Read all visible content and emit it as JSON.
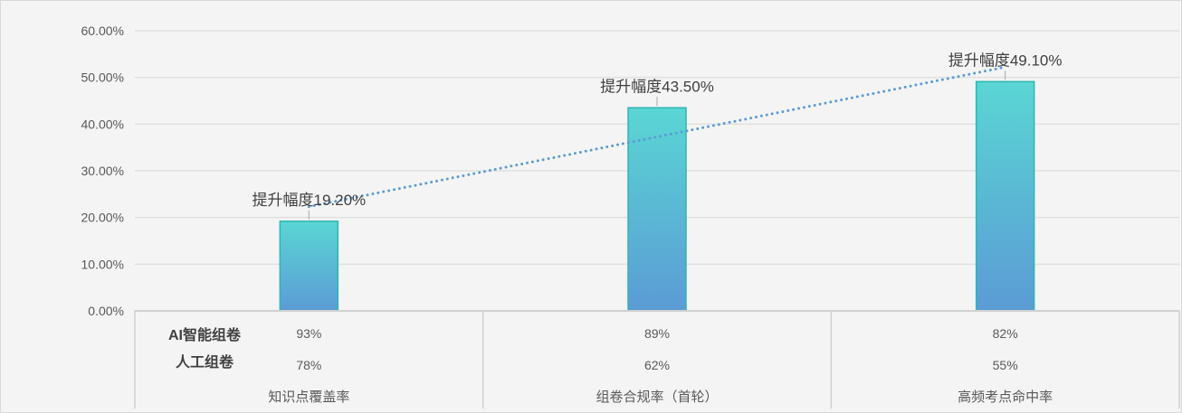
{
  "chart_data": {
    "type": "bar",
    "categories": [
      "知识点覆盖率",
      "组卷合规率（首轮）",
      "高频考点命中率"
    ],
    "values": [
      19.2,
      43.5,
      49.1
    ],
    "data_labels": [
      "提升幅度19.20%",
      "提升幅度43.50%",
      "提升幅度49.10%"
    ],
    "y_ticks": [
      "0.00%",
      "10.00%",
      "20.00%",
      "30.00%",
      "40.00%",
      "50.00%",
      "60.00%"
    ],
    "ylim": [
      0,
      60
    ],
    "grid": true,
    "trendline": "linear",
    "colors": {
      "bar_top": "#5ad6d4",
      "bar_bottom": "#5b9bd5",
      "bar_border": "#2fb5b3",
      "trendline": "#5b9bd5"
    },
    "data_table": {
      "rows": [
        {
          "name": "AI智能组卷",
          "values": [
            "93%",
            "89%",
            "82%"
          ]
        },
        {
          "name": "人工组卷",
          "values": [
            "78%",
            "62%",
            "55%"
          ]
        }
      ]
    }
  }
}
